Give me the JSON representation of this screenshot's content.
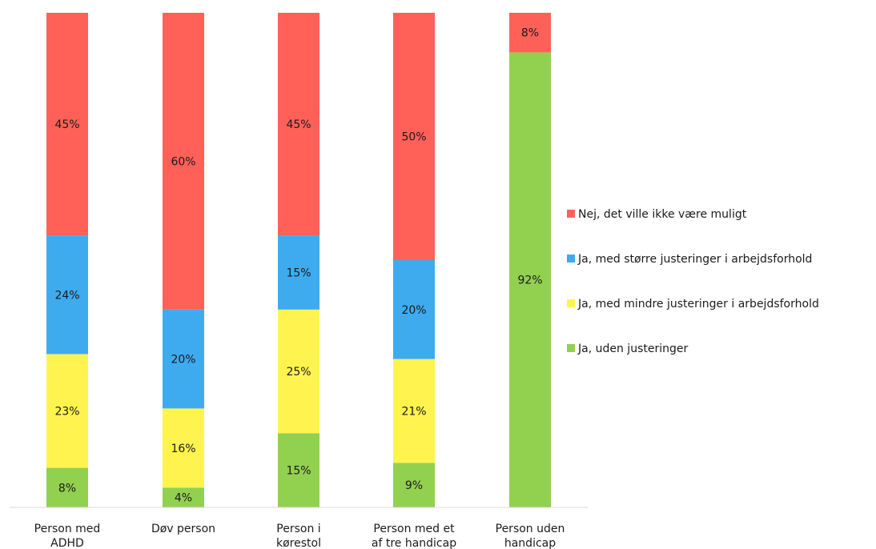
{
  "chart_data": {
    "type": "bar",
    "stacked": true,
    "percent_stacked": true,
    "categories": [
      [
        "Person med",
        "ADHD"
      ],
      [
        "Døv person"
      ],
      [
        "Person i",
        "kørestol"
      ],
      [
        "Person med et",
        "af tre handicap"
      ],
      [
        "Person uden",
        "handicap"
      ]
    ],
    "series": [
      {
        "name": "Ja, uden justeringer",
        "color": "#92d050",
        "values": [
          8,
          4,
          15,
          9,
          92
        ],
        "labels": [
          "8%",
          "4%",
          "15%",
          "9%",
          "92%"
        ]
      },
      {
        "name": "Ja, med mindre justeringer i arbejdsforhold",
        "color": "#fff44f",
        "values": [
          23,
          16,
          25,
          21,
          0
        ],
        "labels": [
          "23%",
          "16%",
          "25%",
          "21%",
          ""
        ]
      },
      {
        "name": "Ja, med større justeringer i arbejdsforhold",
        "color": "#3fabef",
        "values": [
          24,
          20,
          15,
          20,
          0
        ],
        "labels": [
          "24%",
          "20%",
          "15%",
          "20%",
          ""
        ]
      },
      {
        "name": "Nej, det ville ikke være muligt",
        "color": "#ff6159",
        "values": [
          45,
          60,
          45,
          50,
          8
        ],
        "labels": [
          "45%",
          "60%",
          "45%",
          "50%",
          "8%"
        ]
      }
    ],
    "legend_order": [
      3,
      2,
      1,
      0
    ],
    "legend_position": "right",
    "ylim": [
      0,
      100
    ],
    "grid": false
  }
}
